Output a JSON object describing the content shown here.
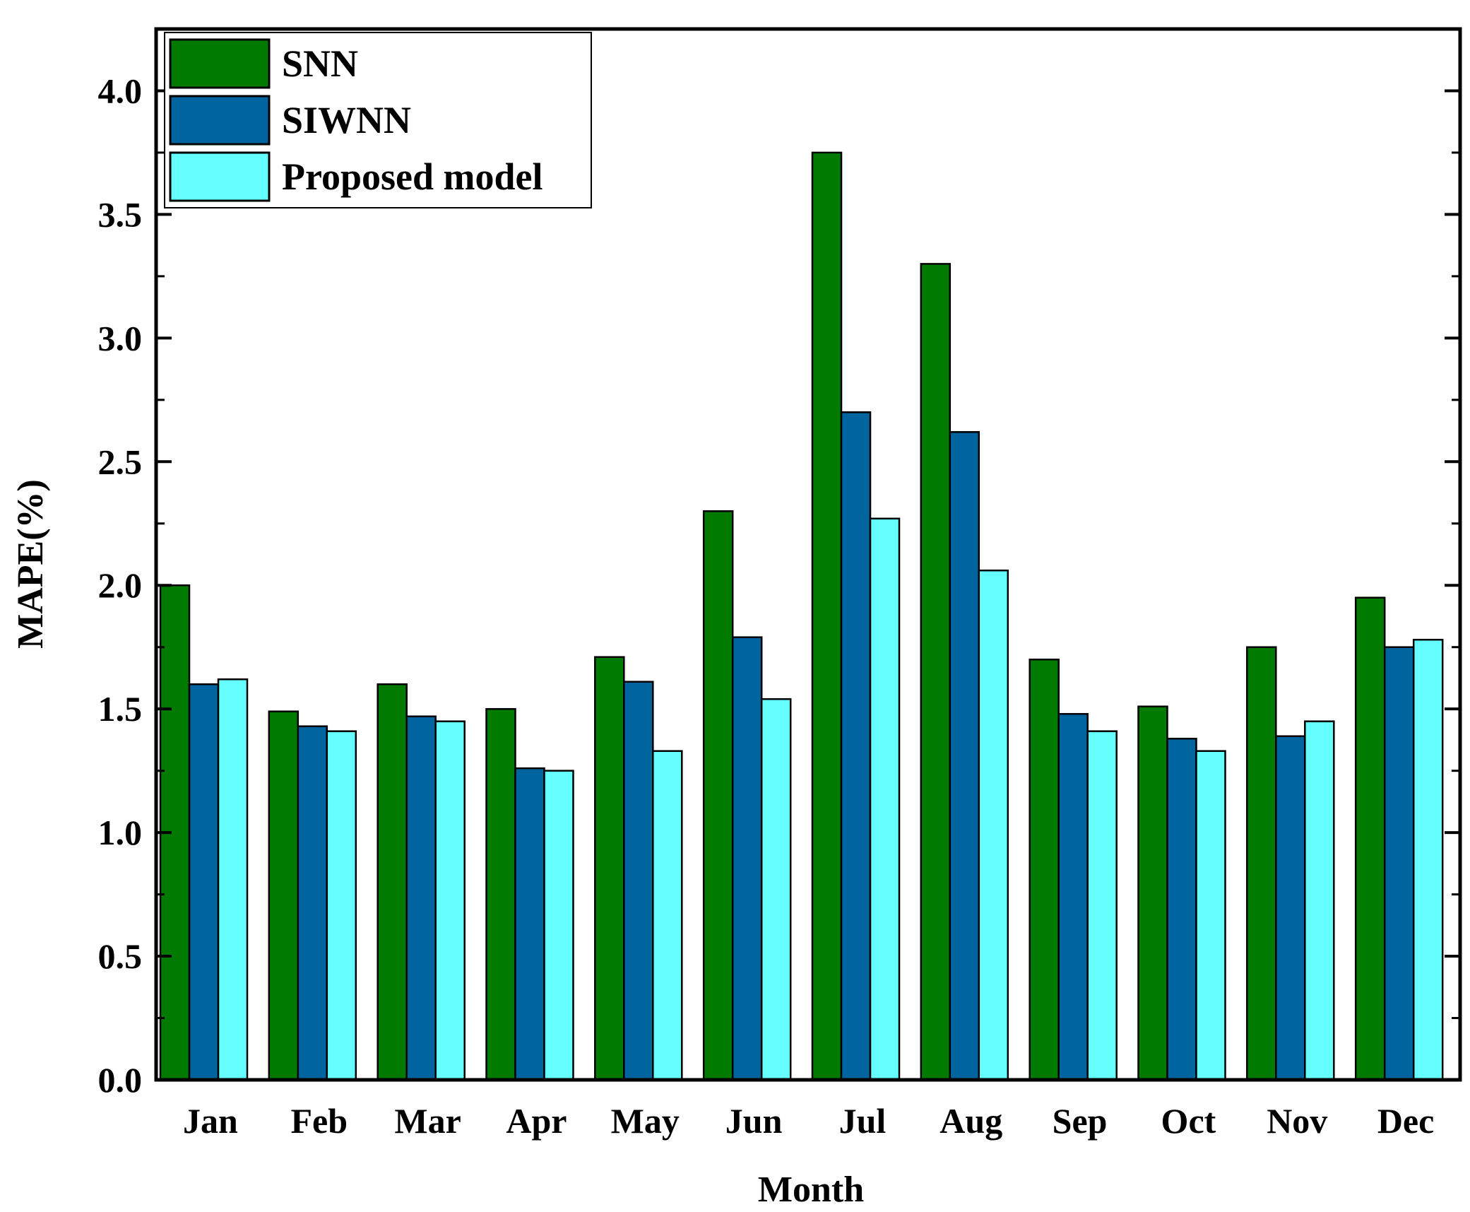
{
  "chart_data": {
    "type": "bar",
    "title": "",
    "xlabel": "Month",
    "ylabel": "MAPE(%)",
    "ylim": [
      0,
      4.25
    ],
    "yticks": [
      "0.0",
      "0.5",
      "1.0",
      "1.5",
      "2.0",
      "2.5",
      "3.0",
      "3.5",
      "4.0"
    ],
    "grid": false,
    "legend_position": "top-left",
    "categories": [
      "Jan",
      "Feb",
      "Mar",
      "Apr",
      "May",
      "Jun",
      "Jul",
      "Aug",
      "Sep",
      "Oct",
      "Nov",
      "Dec"
    ],
    "series": [
      {
        "name": "SNN",
        "color": "#007a00",
        "values": [
          2.0,
          1.49,
          1.6,
          1.5,
          1.71,
          2.3,
          3.75,
          3.3,
          1.7,
          1.51,
          1.75,
          1.95
        ]
      },
      {
        "name": "SIWNN",
        "color": "#00649e",
        "values": [
          1.6,
          1.43,
          1.47,
          1.26,
          1.61,
          1.79,
          2.7,
          2.62,
          1.48,
          1.38,
          1.39,
          1.75
        ]
      },
      {
        "name": "Proposed model",
        "color": "#66ffff",
        "values": [
          1.62,
          1.41,
          1.45,
          1.25,
          1.33,
          1.54,
          2.27,
          2.06,
          1.41,
          1.33,
          1.45,
          1.78
        ]
      }
    ]
  }
}
